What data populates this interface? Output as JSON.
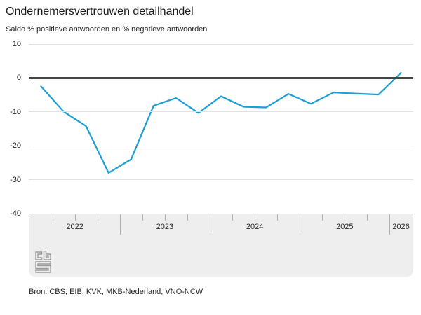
{
  "header": {
    "title": "Ondernemersvertrouwen detailhandel",
    "subtitle": "Saldo % positieve antwoorden en % negatieve antwoorden"
  },
  "source": {
    "label": "Bron: CBS, EIB, KVK, MKB-Nederland, VNO-NCW"
  },
  "logo": {
    "name": "cbs-logo"
  },
  "colors": {
    "line": "#199ed5",
    "zero_line": "#454545",
    "gridline": "#e2e2e2",
    "navigator_bg": "#eeeeee",
    "navigator_tick": "#b0b0b0",
    "text": "#262626"
  },
  "chart_data": {
    "type": "line",
    "title": "Ondernemersvertrouwen detailhandel",
    "subtitle": "Saldo % positieve antwoorden en % negatieve antwoorden",
    "ylabel": "Saldo %",
    "ylim": [
      -40,
      10
    ],
    "yticks": [
      10,
      0,
      -10,
      -20,
      -30,
      -40
    ],
    "grid": true,
    "legend": false,
    "x_axis": {
      "years": [
        {
          "label": "2022",
          "quarters": 4
        },
        {
          "label": "2023",
          "quarters": 4
        },
        {
          "label": "2024",
          "quarters": 4
        },
        {
          "label": "2025",
          "quarters": 4
        },
        {
          "label": "2026",
          "quarters": 1
        }
      ]
    },
    "series": [
      {
        "name": "Ondernemersvertrouwen detailhandel",
        "color": "#199ed5",
        "points": [
          {
            "period": "2022 Q1",
            "value": -2.5
          },
          {
            "period": "2022 Q2",
            "value": -9.9
          },
          {
            "period": "2022 Q3",
            "value": -14.2
          },
          {
            "period": "2022 Q4",
            "value": -28.0
          },
          {
            "period": "2023 Q1",
            "value": -24.0
          },
          {
            "period": "2023 Q2",
            "value": -8.2
          },
          {
            "period": "2023 Q3",
            "value": -5.9
          },
          {
            "period": "2023 Q4",
            "value": -10.3
          },
          {
            "period": "2024 Q1",
            "value": -5.4
          },
          {
            "period": "2024 Q2",
            "value": -8.5
          },
          {
            "period": "2024 Q3",
            "value": -8.7
          },
          {
            "period": "2024 Q4",
            "value": -4.7
          },
          {
            "period": "2025 Q1",
            "value": -7.6
          },
          {
            "period": "2025 Q2",
            "value": -4.3
          },
          {
            "period": "2025 Q3",
            "value": -4.6
          },
          {
            "period": "2025 Q4",
            "value": -4.9
          },
          {
            "period": "2026 Q1",
            "value": 1.5
          }
        ]
      }
    ]
  }
}
